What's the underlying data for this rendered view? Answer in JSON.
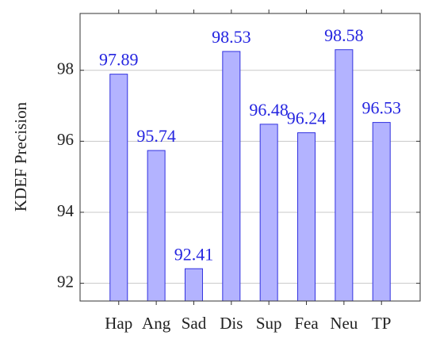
{
  "chart_data": {
    "type": "bar",
    "y_label": "KDEF Precision",
    "categories": [
      "Hap",
      "Ang",
      "Sad",
      "Dis",
      "Sup",
      "Fea",
      "Neu",
      "TP"
    ],
    "values": [
      97.89,
      95.74,
      92.41,
      98.53,
      96.48,
      96.24,
      98.58,
      96.53
    ],
    "color": "#b3b3ff",
    "edge_color": "#3232e0",
    "ylim": [
      91.5,
      99.6
    ],
    "yticks": [
      92,
      94,
      96,
      98
    ],
    "grid": true
  }
}
